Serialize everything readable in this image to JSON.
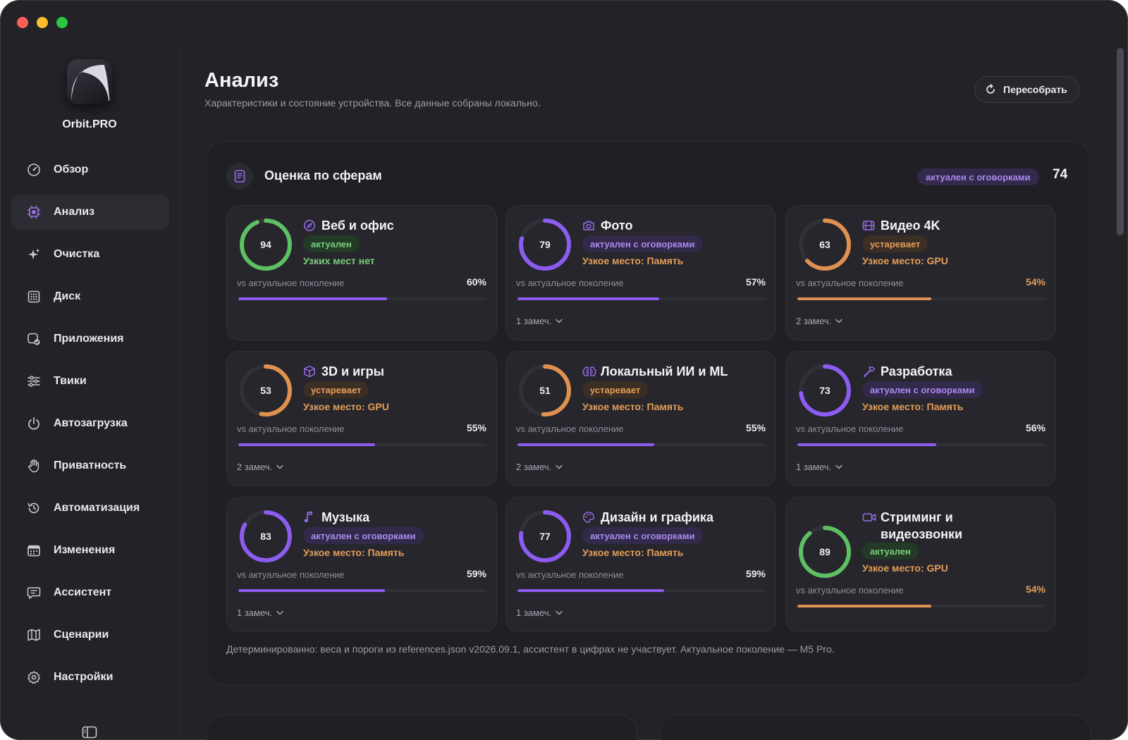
{
  "app": {
    "name": "Orbit.PRO"
  },
  "sidebar": {
    "items": [
      {
        "label": "Обзор",
        "icon": "gauge-icon",
        "active": false
      },
      {
        "label": "Анализ",
        "icon": "chip-icon",
        "active": true
      },
      {
        "label": "Очистка",
        "icon": "sparkle-icon",
        "active": false
      },
      {
        "label": "Диск",
        "icon": "grid-icon",
        "active": false
      },
      {
        "label": "Приложения",
        "icon": "app-check-icon",
        "active": false
      },
      {
        "label": "Твики",
        "icon": "sliders-icon",
        "active": false
      },
      {
        "label": "Автозагрузка",
        "icon": "power-icon",
        "active": false
      },
      {
        "label": "Приватность",
        "icon": "hand-icon",
        "active": false
      },
      {
        "label": "Автоматизация",
        "icon": "clock-rotate-icon",
        "active": false
      },
      {
        "label": "Изменения",
        "icon": "calendar-icon",
        "active": false
      },
      {
        "label": "Ассистент",
        "icon": "chat-icon",
        "active": false
      },
      {
        "label": "Сценарии",
        "icon": "map-icon",
        "active": false
      },
      {
        "label": "Настройки",
        "icon": "gear-icon",
        "active": false
      }
    ]
  },
  "header": {
    "title": "Анализ",
    "subtitle": "Характеристики и состояние устройства. Все данные собраны локально.",
    "rebuild_label": "Пересобрать"
  },
  "panel": {
    "title": "Оценка по сферам",
    "badge": "актуален с оговорками",
    "score": "74",
    "footnote": "Детерминированно: веса и пороги из references.json v2026.09.1, ассистент в цифрах не участвует. Актуальное поколение — M5 Pro.",
    "vs_label": "vs актуальное поколение",
    "cards": [
      {
        "title": "Веб и офис",
        "icon": "compass-icon",
        "score": "94",
        "score_value": 94,
        "status": "актуален",
        "status_kind": "ok",
        "bottleneck": "Узких мест нет",
        "bottleneck_kind": "ok",
        "percent": "60%",
        "percent_value": 60,
        "bar_kind": "purple",
        "remarks": ""
      },
      {
        "title": "Фото",
        "icon": "camera-icon",
        "score": "79",
        "score_value": 79,
        "status": "актуален с оговорками",
        "status_kind": "caveat",
        "bottleneck": "Узкое место: Память",
        "bottleneck_kind": "warn",
        "percent": "57%",
        "percent_value": 57,
        "bar_kind": "purple",
        "remarks": "1 замеч."
      },
      {
        "title": "Видео 4K",
        "icon": "film-icon",
        "score": "63",
        "score_value": 63,
        "status": "устаревает",
        "status_kind": "warn",
        "bottleneck": "Узкое место: GPU",
        "bottleneck_kind": "warn",
        "percent": "54%",
        "percent_value": 54,
        "bar_kind": "orange",
        "remarks": "2 замеч."
      },
      {
        "title": "3D и игры",
        "icon": "cube-icon",
        "score": "53",
        "score_value": 53,
        "status": "устаревает",
        "status_kind": "warn",
        "bottleneck": "Узкое место: GPU",
        "bottleneck_kind": "warn",
        "percent": "55%",
        "percent_value": 55,
        "bar_kind": "purple",
        "remarks": "2 замеч."
      },
      {
        "title": "Локальный ИИ и ML",
        "icon": "brain-icon",
        "score": "51",
        "score_value": 51,
        "status": "устаревает",
        "status_kind": "warn",
        "bottleneck": "Узкое место: Память",
        "bottleneck_kind": "warn",
        "percent": "55%",
        "percent_value": 55,
        "bar_kind": "purple",
        "remarks": "2 замеч."
      },
      {
        "title": "Разработка",
        "icon": "hammer-icon",
        "score": "73",
        "score_value": 73,
        "status": "актуален с оговорками",
        "status_kind": "caveat",
        "bottleneck": "Узкое место: Память",
        "bottleneck_kind": "warn",
        "percent": "56%",
        "percent_value": 56,
        "bar_kind": "purple",
        "remarks": "1 замеч."
      },
      {
        "title": "Музыка",
        "icon": "music-note-icon",
        "score": "83",
        "score_value": 83,
        "status": "актуален с оговорками",
        "status_kind": "caveat",
        "bottleneck": "Узкое место: Память",
        "bottleneck_kind": "warn",
        "percent": "59%",
        "percent_value": 59,
        "bar_kind": "purple",
        "remarks": "1 замеч."
      },
      {
        "title": "Дизайн и графика",
        "icon": "palette-icon",
        "score": "77",
        "score_value": 77,
        "status": "актуален с оговорками",
        "status_kind": "caveat",
        "bottleneck": "Узкое место: Память",
        "bottleneck_kind": "warn",
        "percent": "59%",
        "percent_value": 59,
        "bar_kind": "purple",
        "remarks": "1 замеч."
      },
      {
        "title": "Стриминг и видеозвонки",
        "icon": "video-camera-icon",
        "score": "89",
        "score_value": 89,
        "status": "актуален",
        "status_kind": "ok",
        "bottleneck": "Узкое место: GPU",
        "bottleneck_kind": "warn",
        "percent": "54%",
        "percent_value": 54,
        "bar_kind": "orange",
        "remarks": ""
      }
    ]
  },
  "colors": {
    "accent_purple": "#8c5cf0",
    "ok_green": "#5fbf63",
    "warn_orange": "#e0914f",
    "background": "#222227"
  }
}
